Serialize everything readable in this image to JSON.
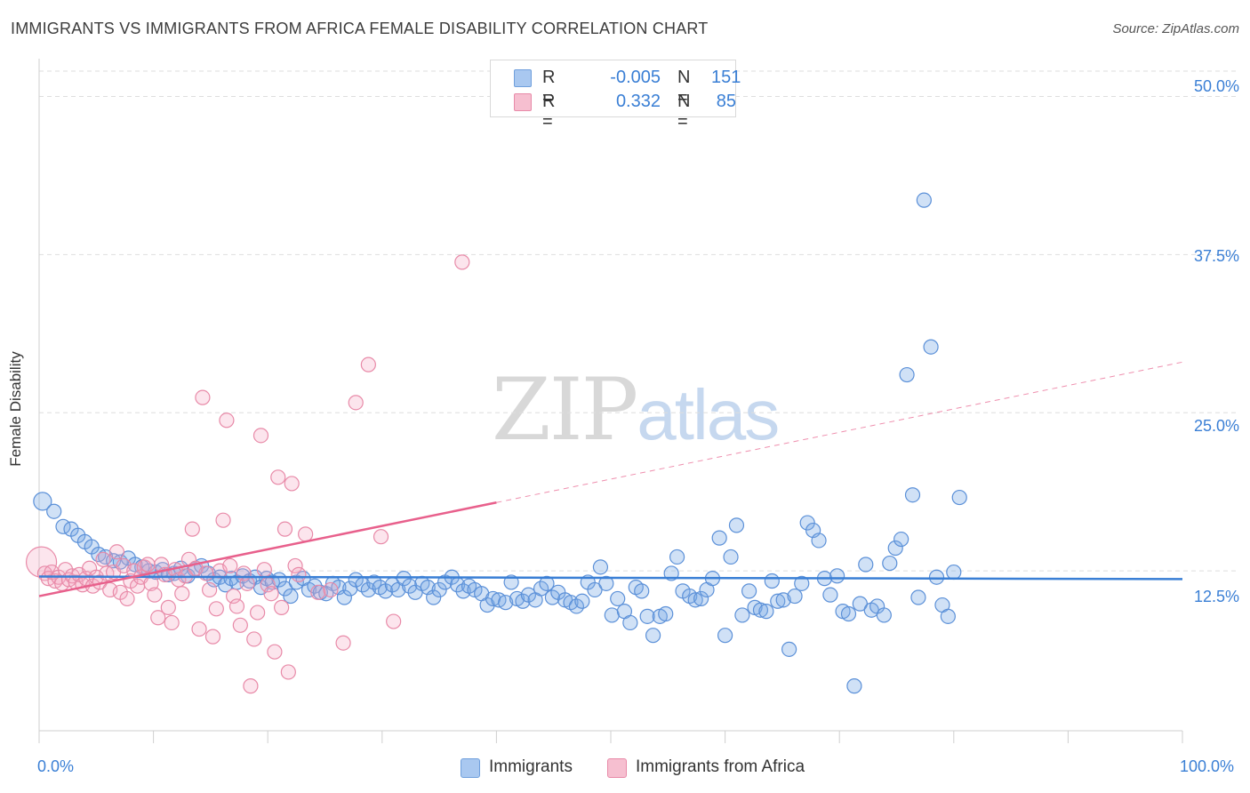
{
  "header": {
    "title": "IMMIGRANTS VS IMMIGRANTS FROM AFRICA FEMALE DISABILITY CORRELATION CHART",
    "source": "Source: ZipAtlas.com"
  },
  "watermark": {
    "zip": "ZIP",
    "atlas": "atlas"
  },
  "legend": {
    "rows": [
      {
        "r_label": "R =",
        "r_value": "-0.005",
        "n_label": "N =",
        "n_value": "151",
        "color": "#a9c8f0",
        "border": "#6f9fdc"
      },
      {
        "r_label": "R =",
        "r_value": "0.332",
        "n_label": "N =",
        "n_value": "85",
        "color": "#f6bfd0",
        "border": "#e88aa8"
      }
    ]
  },
  "bottom_legend": [
    {
      "label": "Immigrants",
      "color": "#a9c8f0",
      "border": "#6f9fdc"
    },
    {
      "label": "Immigrants from Africa",
      "color": "#f6bfd0",
      "border": "#e88aa8"
    }
  ],
  "colors": {
    "blue": "#3a7fd5",
    "blue_fill": "rgba(120,168,230,0.35)",
    "blue_stroke": "#5b90d8",
    "pink": "#e8608c",
    "pink_fill": "rgba(244,170,195,0.30)",
    "pink_stroke": "#e88aa8",
    "grid": "#dedede"
  },
  "chart_data": {
    "type": "scatter",
    "title": "IMMIGRANTS VS IMMIGRANTS FROM AFRICA FEMALE DISABILITY CORRELATION CHART",
    "xlabel": "",
    "ylabel": "Female Disability",
    "xlim": [
      0,
      100
    ],
    "ylim": [
      0,
      52
    ],
    "x_tick_labels": [
      "0.0%",
      "100.0%"
    ],
    "y_ticks": [
      12.5,
      25.0,
      37.5,
      50.0
    ],
    "y_tick_labels": [
      "12.5%",
      "25.0%",
      "37.5%",
      "50.0%"
    ],
    "grid": true,
    "legend_position": "top-center",
    "series": [
      {
        "name": "Immigrants",
        "R": -0.005,
        "N": 151,
        "trend": {
          "x": [
            0,
            100
          ],
          "y": [
            12.05,
            11.85
          ],
          "dashed_extension": false
        },
        "points": [
          [
            0.3,
            18.0
          ],
          [
            1.3,
            17.2
          ],
          [
            2.1,
            16.0
          ],
          [
            2.8,
            15.8
          ],
          [
            3.4,
            15.3
          ],
          [
            4.0,
            14.8
          ],
          [
            4.6,
            14.4
          ],
          [
            5.2,
            13.8
          ],
          [
            5.8,
            13.6
          ],
          [
            6.5,
            13.3
          ],
          [
            7.1,
            13.2
          ],
          [
            7.8,
            13.5
          ],
          [
            8.4,
            13.0
          ],
          [
            9.0,
            12.8
          ],
          [
            9.6,
            12.5
          ],
          [
            10.2,
            12.4
          ],
          [
            10.8,
            12.6
          ],
          [
            11.3,
            12.2
          ],
          [
            11.8,
            12.3
          ],
          [
            12.4,
            12.7
          ],
          [
            13.0,
            12.1
          ],
          [
            13.6,
            12.6
          ],
          [
            14.2,
            12.9
          ],
          [
            14.8,
            12.3
          ],
          [
            15.3,
            11.8
          ],
          [
            15.8,
            12.0
          ],
          [
            16.3,
            11.4
          ],
          [
            16.8,
            11.9
          ],
          [
            17.3,
            11.6
          ],
          [
            17.8,
            12.1
          ],
          [
            18.4,
            11.7
          ],
          [
            18.9,
            12.0
          ],
          [
            19.4,
            11.2
          ],
          [
            19.9,
            11.9
          ],
          [
            20.4,
            11.6
          ],
          [
            21.0,
            11.8
          ],
          [
            21.5,
            11.1
          ],
          [
            22.0,
            10.5
          ],
          [
            22.5,
            11.6
          ],
          [
            23.1,
            11.9
          ],
          [
            23.6,
            11.0
          ],
          [
            24.1,
            11.3
          ],
          [
            24.6,
            10.8
          ],
          [
            25.1,
            10.7
          ],
          [
            25.7,
            11.5
          ],
          [
            26.2,
            11.2
          ],
          [
            26.7,
            10.4
          ],
          [
            27.2,
            11.1
          ],
          [
            27.7,
            11.8
          ],
          [
            28.3,
            11.4
          ],
          [
            28.8,
            11.0
          ],
          [
            29.3,
            11.6
          ],
          [
            29.8,
            11.2
          ],
          [
            30.3,
            10.9
          ],
          [
            30.9,
            11.4
          ],
          [
            31.4,
            11.0
          ],
          [
            31.9,
            11.9
          ],
          [
            32.4,
            11.3
          ],
          [
            32.9,
            10.8
          ],
          [
            33.5,
            11.5
          ],
          [
            34.0,
            11.2
          ],
          [
            34.5,
            10.4
          ],
          [
            35.0,
            11.0
          ],
          [
            35.5,
            11.6
          ],
          [
            36.1,
            12.0
          ],
          [
            36.6,
            11.4
          ],
          [
            37.1,
            10.9
          ],
          [
            37.6,
            11.3
          ],
          [
            38.1,
            11.0
          ],
          [
            38.7,
            10.7
          ],
          [
            39.2,
            9.8
          ],
          [
            39.7,
            10.3
          ],
          [
            40.2,
            10.2
          ],
          [
            40.8,
            10.0
          ],
          [
            41.3,
            11.6
          ],
          [
            41.8,
            10.3
          ],
          [
            42.3,
            10.1
          ],
          [
            42.8,
            10.6
          ],
          [
            43.4,
            10.2
          ],
          [
            43.9,
            11.1
          ],
          [
            44.4,
            11.5
          ],
          [
            44.9,
            10.4
          ],
          [
            45.4,
            10.8
          ],
          [
            46.0,
            10.2
          ],
          [
            46.5,
            10.0
          ],
          [
            47.0,
            9.7
          ],
          [
            47.5,
            10.1
          ],
          [
            48.0,
            11.6
          ],
          [
            48.6,
            11.0
          ],
          [
            49.1,
            12.8
          ],
          [
            49.6,
            11.5
          ],
          [
            50.1,
            9.0
          ],
          [
            50.6,
            10.3
          ],
          [
            51.2,
            9.3
          ],
          [
            51.7,
            8.4
          ],
          [
            52.2,
            11.2
          ],
          [
            52.7,
            10.9
          ],
          [
            53.2,
            8.9
          ],
          [
            53.7,
            7.4
          ],
          [
            54.3,
            8.9
          ],
          [
            54.8,
            9.1
          ],
          [
            55.3,
            12.3
          ],
          [
            55.8,
            13.6
          ],
          [
            56.3,
            10.9
          ],
          [
            56.9,
            10.5
          ],
          [
            57.4,
            10.2
          ],
          [
            57.9,
            10.3
          ],
          [
            58.4,
            11.0
          ],
          [
            58.9,
            11.9
          ],
          [
            59.5,
            15.1
          ],
          [
            60.0,
            7.4
          ],
          [
            60.5,
            13.6
          ],
          [
            61.0,
            16.1
          ],
          [
            61.5,
            9.0
          ],
          [
            62.1,
            10.9
          ],
          [
            62.6,
            9.6
          ],
          [
            63.1,
            9.4
          ],
          [
            63.6,
            9.3
          ],
          [
            64.1,
            11.7
          ],
          [
            64.6,
            10.1
          ],
          [
            65.1,
            10.2
          ],
          [
            65.6,
            6.3
          ],
          [
            66.1,
            10.5
          ],
          [
            66.7,
            11.5
          ],
          [
            67.2,
            16.3
          ],
          [
            67.7,
            15.7
          ],
          [
            68.2,
            14.9
          ],
          [
            68.7,
            11.9
          ],
          [
            69.2,
            10.6
          ],
          [
            69.8,
            12.1
          ],
          [
            70.3,
            9.3
          ],
          [
            70.8,
            9.1
          ],
          [
            71.3,
            3.4
          ],
          [
            71.8,
            9.9
          ],
          [
            72.3,
            13.0
          ],
          [
            72.8,
            9.4
          ],
          [
            73.3,
            9.7
          ],
          [
            73.9,
            9.0
          ],
          [
            74.4,
            13.1
          ],
          [
            74.9,
            14.3
          ],
          [
            75.4,
            15.0
          ],
          [
            75.9,
            28.0
          ],
          [
            76.4,
            18.5
          ],
          [
            76.9,
            10.4
          ],
          [
            77.4,
            41.8
          ],
          [
            78.0,
            30.2
          ],
          [
            78.5,
            12.0
          ],
          [
            79.0,
            9.8
          ],
          [
            79.5,
            8.9
          ],
          [
            80.0,
            12.4
          ],
          [
            80.5,
            18.3
          ]
        ]
      },
      {
        "name": "Immigrants from Africa",
        "R": 0.332,
        "N": 85,
        "trend": {
          "x": [
            0,
            40
          ],
          "y": [
            10.5,
            17.9
          ],
          "dashed_extension": true,
          "dashed_to": [
            100,
            29.0
          ]
        },
        "points": [
          [
            0.2,
            13.2
          ],
          [
            0.5,
            12.3
          ],
          [
            0.8,
            11.9
          ],
          [
            1.1,
            12.4
          ],
          [
            1.4,
            11.7
          ],
          [
            1.7,
            12.0
          ],
          [
            2.0,
            11.5
          ],
          [
            2.3,
            12.6
          ],
          [
            2.6,
            11.8
          ],
          [
            2.9,
            12.1
          ],
          [
            3.2,
            11.6
          ],
          [
            3.5,
            12.2
          ],
          [
            3.8,
            11.4
          ],
          [
            4.1,
            11.9
          ],
          [
            4.4,
            12.7
          ],
          [
            4.7,
            11.3
          ],
          [
            5.0,
            12.0
          ],
          [
            5.3,
            11.6
          ],
          [
            5.6,
            13.4
          ],
          [
            5.9,
            12.3
          ],
          [
            6.2,
            11.0
          ],
          [
            6.5,
            12.4
          ],
          [
            6.8,
            14.0
          ],
          [
            7.1,
            10.8
          ],
          [
            7.4,
            12.9
          ],
          [
            7.7,
            10.3
          ],
          [
            8.0,
            11.7
          ],
          [
            8.3,
            12.5
          ],
          [
            8.6,
            11.3
          ],
          [
            8.9,
            12.0
          ],
          [
            9.2,
            12.8
          ],
          [
            9.5,
            13.0
          ],
          [
            9.8,
            11.5
          ],
          [
            10.1,
            10.6
          ],
          [
            10.4,
            8.8
          ],
          [
            10.7,
            13.0
          ],
          [
            11.0,
            12.2
          ],
          [
            11.3,
            9.6
          ],
          [
            11.6,
            8.4
          ],
          [
            11.9,
            12.6
          ],
          [
            12.2,
            11.8
          ],
          [
            12.5,
            10.7
          ],
          [
            12.8,
            12.1
          ],
          [
            13.1,
            13.4
          ],
          [
            13.4,
            15.8
          ],
          [
            13.7,
            12.7
          ],
          [
            14.0,
            7.9
          ],
          [
            14.3,
            26.2
          ],
          [
            14.6,
            12.3
          ],
          [
            14.9,
            11.0
          ],
          [
            15.2,
            7.3
          ],
          [
            15.5,
            9.5
          ],
          [
            15.8,
            12.5
          ],
          [
            16.1,
            16.5
          ],
          [
            16.4,
            24.4
          ],
          [
            16.7,
            12.9
          ],
          [
            17.0,
            10.5
          ],
          [
            17.3,
            9.7
          ],
          [
            17.6,
            8.2
          ],
          [
            17.9,
            12.3
          ],
          [
            18.2,
            11.5
          ],
          [
            18.5,
            3.4
          ],
          [
            18.8,
            7.1
          ],
          [
            19.1,
            9.2
          ],
          [
            19.4,
            23.2
          ],
          [
            19.7,
            12.6
          ],
          [
            20.0,
            11.4
          ],
          [
            20.3,
            10.7
          ],
          [
            20.6,
            6.1
          ],
          [
            20.9,
            19.9
          ],
          [
            21.2,
            9.6
          ],
          [
            21.5,
            15.8
          ],
          [
            21.8,
            4.5
          ],
          [
            22.1,
            19.4
          ],
          [
            22.4,
            12.9
          ],
          [
            22.7,
            12.2
          ],
          [
            23.3,
            15.4
          ],
          [
            24.4,
            10.8
          ],
          [
            25.5,
            11.0
          ],
          [
            26.6,
            6.8
          ],
          [
            27.7,
            25.8
          ],
          [
            28.8,
            28.8
          ],
          [
            29.9,
            15.2
          ],
          [
            31.0,
            8.5
          ],
          [
            37.0,
            36.9
          ]
        ]
      }
    ]
  },
  "axes": {
    "y_axis_title": "Female Disability",
    "x_left_label": "0.0%",
    "x_right_label": "100.0%",
    "y_labels": [
      "12.5%",
      "25.0%",
      "37.5%",
      "50.0%"
    ]
  }
}
